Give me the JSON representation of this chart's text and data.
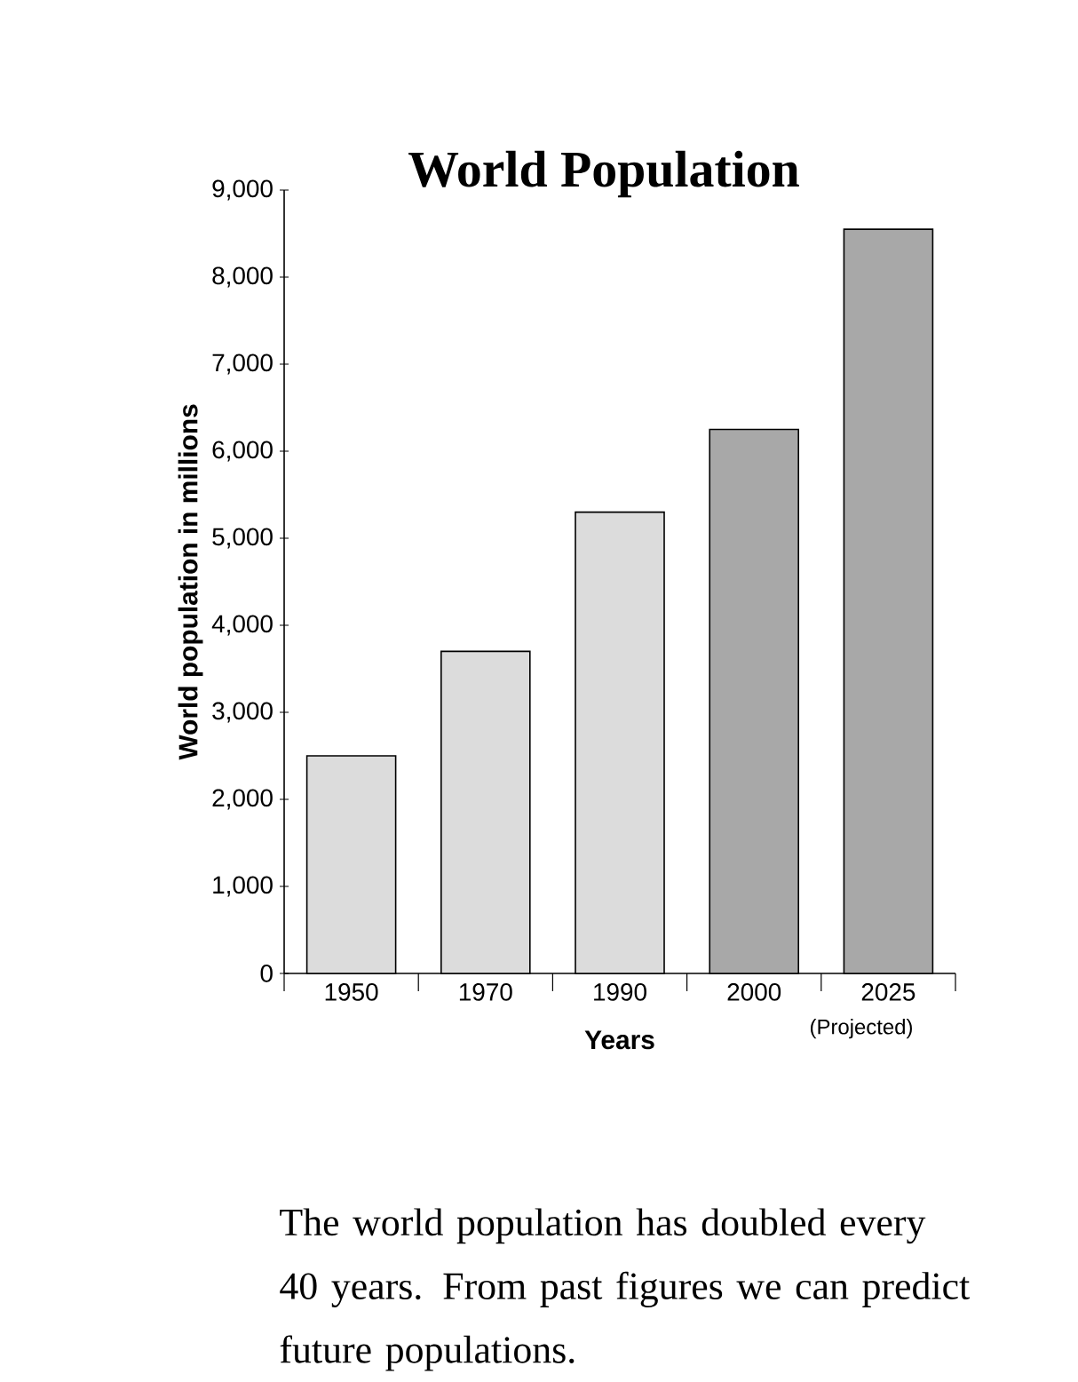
{
  "chart_data": {
    "type": "bar",
    "title": "World Population",
    "xlabel": "Years",
    "ylabel": "World population in millions",
    "categories": [
      "1950",
      "1970",
      "1990",
      "2000",
      "2025"
    ],
    "values": [
      2500,
      3700,
      5300,
      6250,
      8550
    ],
    "colors": [
      "#dcdcdc",
      "#dcdcdc",
      "#dcdcdc",
      "#a8a8a8",
      "#a8a8a8"
    ],
    "ylim": [
      0,
      9000
    ],
    "yticks": [
      0,
      {
        "value": 1000,
        "label": "1,000"
      },
      {
        "value": 2000,
        "label": "2,000"
      },
      {
        "value": 3000,
        "label": "3,000"
      },
      {
        "value": 4000,
        "label": "4,000"
      },
      {
        "value": 5000,
        "label": "5,000"
      },
      {
        "value": 6000,
        "label": "6,000"
      },
      {
        "value": 7000,
        "label": "7,000"
      },
      {
        "value": 8000,
        "label": "8,000"
      },
      {
        "value": 9000,
        "label": "9,000"
      }
    ],
    "grid": false,
    "annotations": [
      "(Projected)",
      "The world population has doubled every 40 years. From past figures we can predict future populations."
    ]
  }
}
